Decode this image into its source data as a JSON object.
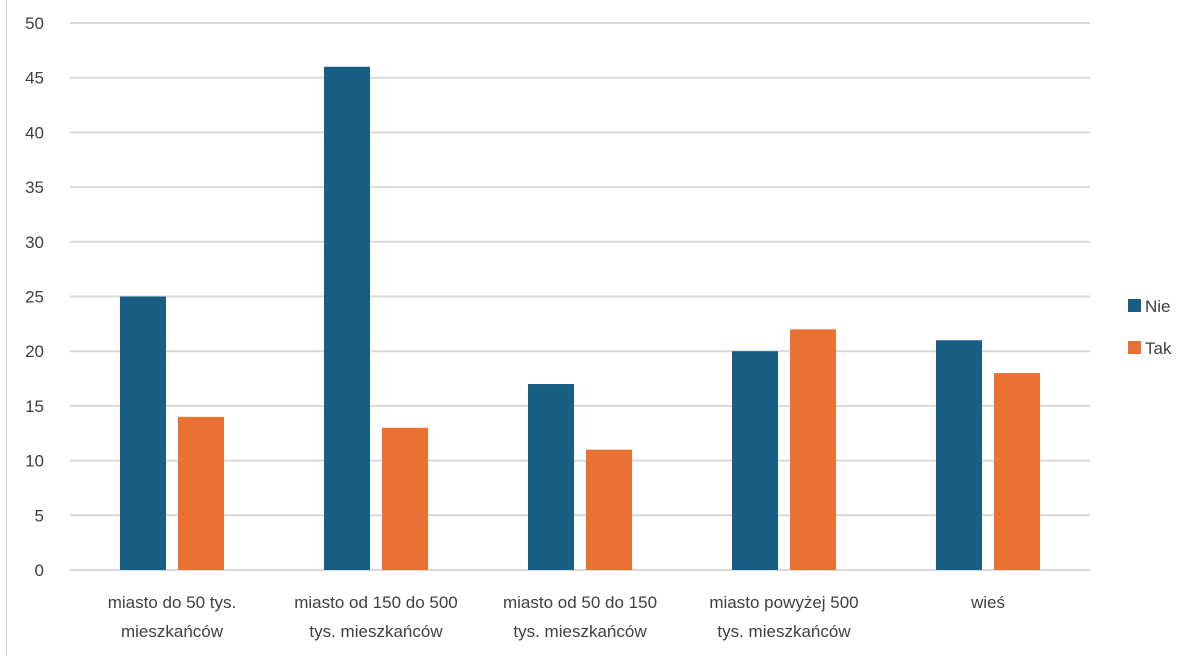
{
  "chart_data": {
    "type": "bar",
    "title": "",
    "xlabel": "",
    "ylabel": "",
    "ylim": [
      0,
      50
    ],
    "yticks": [
      0,
      5,
      10,
      15,
      20,
      25,
      30,
      35,
      40,
      45,
      50
    ],
    "grid": true,
    "legend_position": "right",
    "categories": [
      [
        "miasto do 50 tys.",
        "mieszkańców"
      ],
      [
        "miasto od 150 do 500",
        "tys. mieszkańców"
      ],
      [
        "miasto od 50 do 150",
        "tys. mieszkańców"
      ],
      [
        "miasto powyżej 500",
        "tys. mieszkańców"
      ],
      [
        "wieś"
      ]
    ],
    "series": [
      {
        "name": "Nie",
        "color": "#175e82",
        "values": [
          25,
          46,
          17,
          20,
          21
        ]
      },
      {
        "name": "Tak",
        "color": "#e97132",
        "values": [
          14,
          13,
          11,
          22,
          18
        ]
      }
    ],
    "colors": {
      "grid": "#d9d9d9",
      "text": "#404040"
    }
  }
}
